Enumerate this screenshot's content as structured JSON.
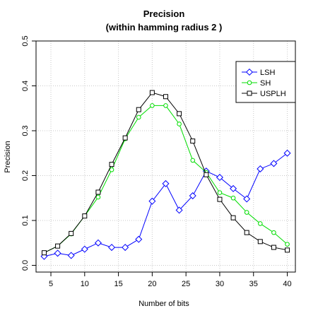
{
  "chart_data": {
    "type": "line",
    "title": "Precision",
    "subtitle": "(within hamming radius  2 )",
    "xlabel": "Number of bits",
    "ylabel": "Precision",
    "xlim": [
      2.8,
      41.2
    ],
    "ylim": [
      -0.015,
      0.5
    ],
    "x_ticks": [
      5,
      10,
      15,
      20,
      25,
      30,
      35,
      40
    ],
    "y_ticks": [
      0.0,
      0.1,
      0.2,
      0.3,
      0.4,
      0.5
    ],
    "y_tick_labels": [
      "0.0",
      "0.1",
      "0.2",
      "0.3",
      "0.4",
      "0.5"
    ],
    "grid": true,
    "legend_position": "top-right",
    "x": [
      4,
      6,
      8,
      10,
      12,
      14,
      16,
      18,
      20,
      22,
      24,
      26,
      28,
      30,
      32,
      34,
      36,
      38,
      40
    ],
    "series": [
      {
        "name": "LSH",
        "color": "#0000ff",
        "marker": "diamond",
        "values": [
          0.02,
          0.027,
          0.022,
          0.036,
          0.05,
          0.04,
          0.04,
          0.058,
          0.143,
          0.182,
          0.123,
          0.155,
          0.21,
          0.196,
          0.171,
          0.148,
          0.215,
          0.227,
          0.25
        ]
      },
      {
        "name": "SH",
        "color": "#00dd00",
        "marker": "circle",
        "values": [
          0.028,
          0.043,
          0.07,
          0.11,
          0.152,
          0.213,
          0.282,
          0.33,
          0.356,
          0.356,
          0.315,
          0.234,
          0.207,
          0.162,
          0.15,
          0.118,
          0.093,
          0.073,
          0.047
        ]
      },
      {
        "name": "USPLH",
        "color": "#000000",
        "marker": "square",
        "values": [
          0.028,
          0.043,
          0.071,
          0.11,
          0.163,
          0.225,
          0.284,
          0.347,
          0.385,
          0.376,
          0.338,
          0.277,
          0.202,
          0.147,
          0.106,
          0.073,
          0.053,
          0.04,
          0.034
        ]
      }
    ]
  }
}
